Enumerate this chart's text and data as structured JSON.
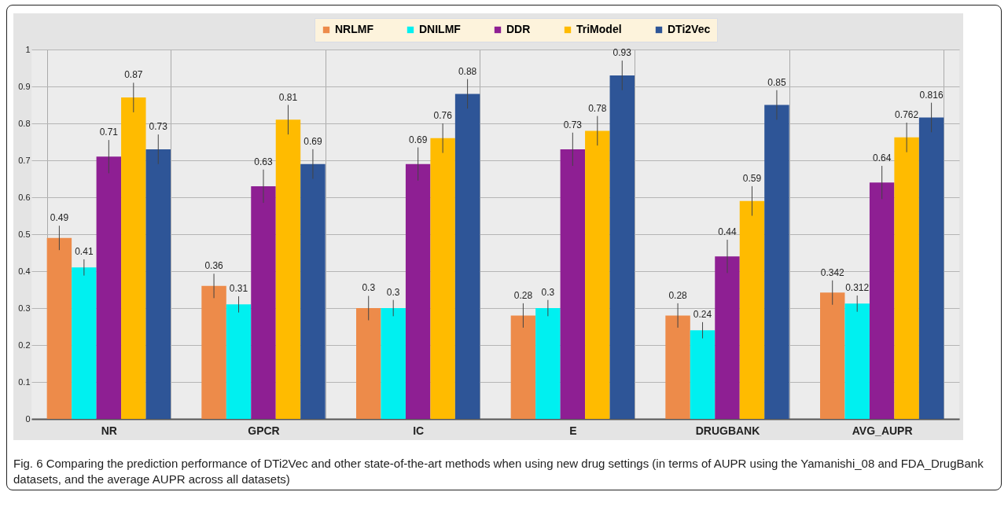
{
  "chart_data": {
    "type": "bar",
    "categories": [
      "NR",
      "GPCR",
      "IC",
      "E",
      "DRUGBANK",
      "AVG_AUPR"
    ],
    "series": [
      {
        "name": "NRLMF",
        "color": "#ed8b4a",
        "values": [
          0.49,
          0.36,
          0.3,
          0.28,
          0.28,
          0.342
        ],
        "errors": [
          0.033,
          0.033,
          0.033,
          0.033,
          0.033,
          0.033
        ]
      },
      {
        "name": "DNILMF",
        "color": "#00f0f0",
        "values": [
          0.41,
          0.31,
          0.3,
          0.3,
          0.24,
          0.312
        ],
        "errors": [
          0.022,
          0.022,
          0.022,
          0.022,
          0.022,
          0.022
        ]
      },
      {
        "name": "DDR",
        "color": "#8e1f93",
        "values": [
          0.71,
          0.63,
          0.69,
          0.73,
          0.44,
          0.64
        ],
        "errors": [
          0.045,
          0.045,
          0.045,
          0.045,
          0.045,
          0.045
        ]
      },
      {
        "name": "TriModel",
        "color": "#ffbb00",
        "values": [
          0.87,
          0.81,
          0.76,
          0.78,
          0.59,
          0.762
        ],
        "errors": [
          0.04,
          0.04,
          0.04,
          0.04,
          0.04,
          0.04
        ]
      },
      {
        "name": "DTi2Vec",
        "color": "#2e5597",
        "values": [
          0.73,
          0.69,
          0.88,
          0.93,
          0.85,
          0.816
        ],
        "errors": [
          0.04,
          0.04,
          0.04,
          0.04,
          0.04,
          0.04
        ]
      }
    ],
    "ylim": [
      0,
      1
    ],
    "yticks": [
      0,
      0.1,
      0.2,
      0.3,
      0.4,
      0.5,
      0.6,
      0.7,
      0.8,
      0.9,
      1
    ],
    "grid": true,
    "legend": "top",
    "data_labels": true,
    "annotations": [
      "Fig. 6  Comparing the prediction performance of DTi2Vec and other state-of-the-art methods when using new drug settings (in terms of AUPR using the Yamanishi_08 and FDA_DrugBank datasets, and the average AUPR across all datasets)"
    ]
  }
}
